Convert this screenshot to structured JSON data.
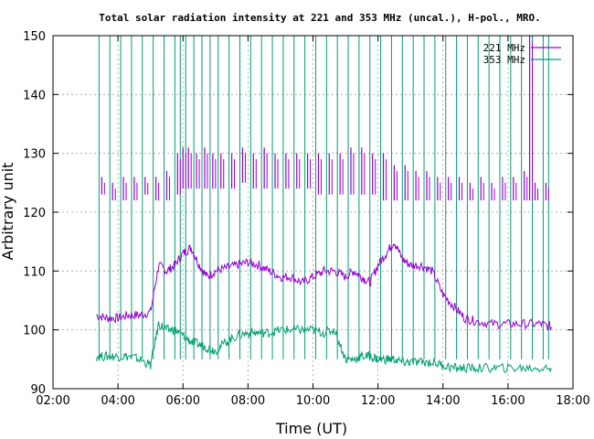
{
  "chart_data": {
    "type": "line",
    "title": "Total solar radiation intensity at 221 and 353 MHz (uncal.), H-pol., MRO.",
    "xlabel": "Time (UT)",
    "ylabel": "Arbitrary unit",
    "xlim": [
      "02:00",
      "18:00"
    ],
    "ylim": [
      90,
      150
    ],
    "x_ticks": [
      "02:00",
      "04:00",
      "06:00",
      "08:00",
      "10:00",
      "12:00",
      "14:00",
      "16:00",
      "18:00"
    ],
    "y_ticks": [
      "90",
      "100",
      "110",
      "120",
      "130",
      "140",
      "150"
    ],
    "grid": true,
    "legend_position": "top-right",
    "series": [
      {
        "name": "221 MHz",
        "color": "#9400d3",
        "x": [
          "03:20",
          "03:40",
          "04:00",
          "04:20",
          "04:40",
          "05:00",
          "05:15",
          "05:30",
          "05:45",
          "06:00",
          "06:15",
          "06:30",
          "06:45",
          "07:00",
          "07:20",
          "07:40",
          "08:00",
          "08:20",
          "08:40",
          "09:00",
          "09:20",
          "09:40",
          "10:00",
          "10:20",
          "10:40",
          "11:00",
          "11:15",
          "11:30",
          "11:45",
          "12:00",
          "12:15",
          "12:30",
          "12:45",
          "13:00",
          "13:20",
          "13:40",
          "14:00",
          "14:20",
          "14:40",
          "15:00",
          "15:30",
          "16:00",
          "16:30",
          "17:00",
          "17:20"
        ],
        "values": [
          102.5,
          102,
          102,
          102.5,
          102.5,
          103,
          111,
          110,
          111,
          113,
          114,
          111,
          109,
          110,
          110.5,
          111,
          111.5,
          111,
          110,
          109,
          109,
          108,
          109,
          110,
          110,
          109,
          110,
          109,
          108,
          111,
          113,
          115,
          112,
          111,
          111,
          110,
          106,
          104,
          102,
          101.5,
          101,
          101,
          101,
          101,
          100.5
        ]
      },
      {
        "name": "353 MHz",
        "color": "#009e73",
        "x": [
          "03:20",
          "03:40",
          "04:00",
          "04:20",
          "04:40",
          "05:00",
          "05:15",
          "05:30",
          "05:45",
          "06:00",
          "06:15",
          "06:30",
          "06:45",
          "07:00",
          "07:20",
          "07:40",
          "08:00",
          "08:20",
          "08:40",
          "09:00",
          "09:20",
          "09:40",
          "10:00",
          "10:20",
          "10:40",
          "11:00",
          "11:15",
          "11:30",
          "11:45",
          "12:00",
          "12:15",
          "12:30",
          "12:45",
          "13:00",
          "13:20",
          "13:40",
          "14:00",
          "14:20",
          "14:40",
          "15:00",
          "15:30",
          "16:00",
          "16:30",
          "17:00",
          "17:20"
        ],
        "values": [
          95.5,
          95.5,
          95.5,
          95.5,
          95,
          94,
          101,
          100,
          100,
          99,
          98,
          97.5,
          97,
          96.5,
          98,
          99,
          99.5,
          99.5,
          99.5,
          100,
          100,
          100,
          100,
          99.5,
          100,
          95,
          95,
          95.5,
          95.5,
          95,
          95,
          95,
          94.5,
          94.5,
          94.5,
          94.5,
          94,
          93.5,
          93.5,
          93.5,
          93.5,
          93.5,
          93.5,
          93.5,
          93.5
        ]
      }
    ],
    "calibration_spikes": {
      "221 MHz": {
        "x": [
          "03:30",
          "03:50",
          "04:10",
          "04:30",
          "04:50",
          "05:10",
          "05:30",
          "05:50",
          "06:00",
          "06:10",
          "06:25",
          "06:40",
          "06:55",
          "07:10",
          "07:30",
          "07:50",
          "08:10",
          "08:30",
          "08:50",
          "09:10",
          "09:30",
          "09:50",
          "10:10",
          "10:30",
          "10:50",
          "11:10",
          "11:30",
          "11:50",
          "12:10",
          "12:30",
          "12:50",
          "13:10",
          "13:30",
          "13:50",
          "14:10",
          "14:30",
          "14:50",
          "15:10",
          "15:30",
          "15:50",
          "16:10",
          "16:30",
          "16:40",
          "16:50",
          "17:10"
        ],
        "peak_values": [
          126,
          125,
          126,
          126,
          126,
          126,
          127,
          130,
          131,
          131,
          130,
          131,
          130,
          130,
          130,
          131,
          130,
          131,
          130,
          130,
          130,
          130,
          130,
          130,
          130,
          131,
          131,
          130,
          130,
          128,
          128,
          127,
          127,
          126,
          126,
          126,
          125,
          126,
          125,
          126,
          126,
          127,
          150,
          125,
          125
        ],
        "baseline_values": [
          123,
          122,
          122,
          122,
          123,
          122,
          122,
          123,
          124,
          124,
          124,
          124,
          124,
          124,
          124,
          125,
          124,
          124,
          124,
          124,
          124,
          124,
          123,
          123,
          123,
          123,
          123,
          123,
          122,
          122,
          122,
          122,
          122,
          122,
          122,
          122,
          122,
          122,
          122,
          122,
          122,
          122,
          122,
          122,
          122
        ]
      },
      "353 MHz": {
        "x": [
          "03:25",
          "03:45",
          "04:05",
          "04:25",
          "04:45",
          "05:05",
          "05:25",
          "05:45",
          "05:55",
          "06:05",
          "06:20",
          "06:35",
          "06:50",
          "07:05",
          "07:25",
          "07:45",
          "08:05",
          "08:25",
          "08:45",
          "09:05",
          "09:25",
          "09:45",
          "10:05",
          "10:25",
          "10:45",
          "11:05",
          "11:25",
          "11:45",
          "12:05",
          "12:25",
          "12:45",
          "13:05",
          "13:25",
          "13:45",
          "14:05",
          "14:25",
          "14:45",
          "15:05",
          "15:25",
          "15:45",
          "16:05",
          "16:25",
          "16:45",
          "17:05",
          "17:15"
        ],
        "peak_value": 150
      }
    }
  }
}
